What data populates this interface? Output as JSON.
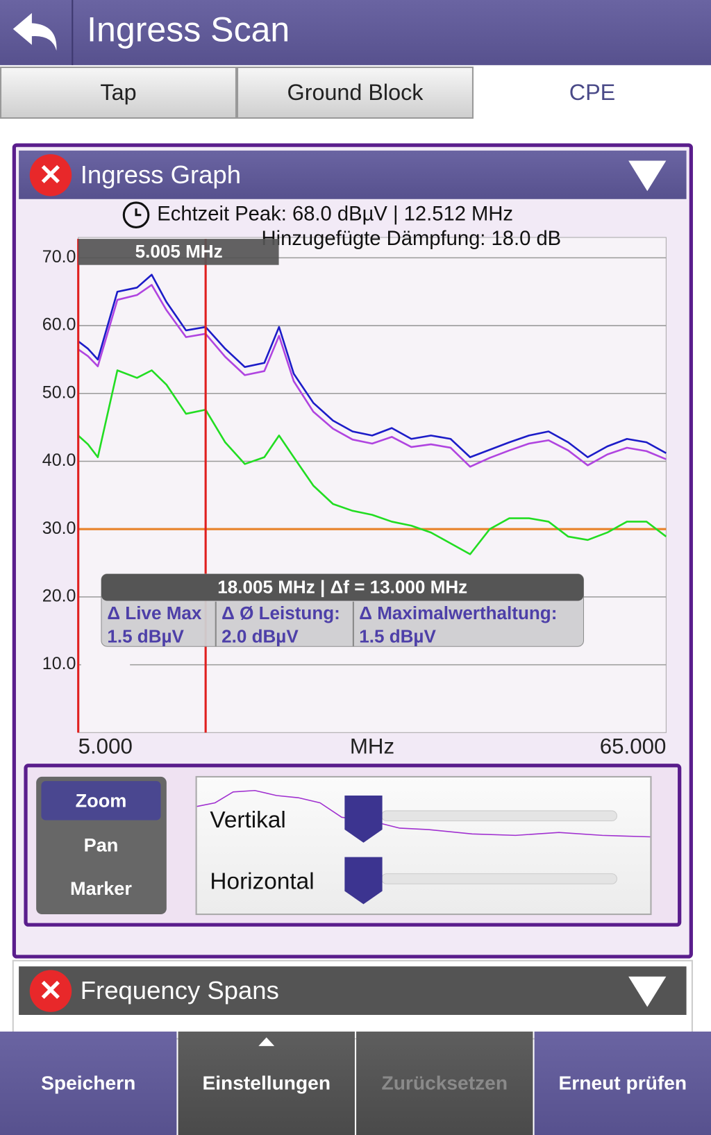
{
  "header": {
    "title": "Ingress Scan"
  },
  "tabs": [
    "Tap",
    "Ground Block",
    "CPE"
  ],
  "graph_panel": {
    "title": "Ingress Graph"
  },
  "chart_data": {
    "type": "line",
    "peak_text": "Echtzeit Peak: 68.0 dBµV | 12.512 MHz",
    "attenuation_text": "Hinzugefügte Dämpfung: 18.0 dB",
    "y_unit": "dBµV",
    "x_label": "MHz",
    "x": [
      5,
      6,
      7,
      9,
      11,
      12.5,
      14,
      16,
      18,
      20,
      22,
      24,
      25.5,
      27,
      29,
      31,
      33,
      35,
      37,
      39,
      41,
      43,
      45,
      47,
      49,
      51,
      53,
      55,
      57,
      59,
      61,
      63,
      65
    ],
    "series": [
      {
        "color": "#1c1cc8",
        "values": [
          57.7,
          56.6,
          55,
          65,
          65.6,
          67.5,
          63.5,
          59.3,
          59.8,
          56.6,
          53.9,
          54.5,
          59.8,
          52.9,
          48.6,
          46,
          44.4,
          43.8,
          44.9,
          43.3,
          43.8,
          43.3,
          40.6,
          41.7,
          42.8,
          43.8,
          44.4,
          42.8,
          40.6,
          42.2,
          43.3,
          42.8,
          41.2
        ]
      },
      {
        "color": "#b044e0",
        "values": [
          56.5,
          55.5,
          54,
          63.8,
          64.5,
          66,
          62.3,
          58.3,
          58.8,
          55.4,
          52.7,
          53.3,
          58.5,
          51.8,
          47.3,
          44.8,
          43.2,
          42.6,
          43.6,
          42.1,
          42.5,
          42,
          39.2,
          40.5,
          41.6,
          42.6,
          43.1,
          41.6,
          39.4,
          41,
          42,
          41.5,
          40.3
        ]
      },
      {
        "color": "#22dd22",
        "values": [
          43.8,
          42.5,
          40.6,
          53.4,
          52.3,
          53.4,
          51.3,
          47,
          47.6,
          42.8,
          39.6,
          40.6,
          43.8,
          40.6,
          36.4,
          33.7,
          32.7,
          32.1,
          31.1,
          30.5,
          29.5,
          27.9,
          26.3,
          30,
          31.6,
          31.6,
          31.1,
          28.9,
          28.4,
          29.5,
          31.1,
          31.1,
          28.9
        ]
      }
    ],
    "xlim": [
      5,
      65
    ],
    "ylim": [
      0,
      73
    ],
    "xticks": [
      {
        "value": 5,
        "label": "5.000"
      },
      {
        "value": 65,
        "label": "65.000"
      }
    ],
    "yticks": [
      {
        "value": 10,
        "label": "10.0"
      },
      {
        "value": 20,
        "label": "20.0"
      },
      {
        "value": 30,
        "label": "30.0"
      },
      {
        "value": 40,
        "label": "40.0"
      },
      {
        "value": 50,
        "label": "50.0"
      },
      {
        "value": 60,
        "label": "60.0"
      },
      {
        "value": 70,
        "label": "70.0"
      }
    ],
    "grid": true,
    "threshold": {
      "value": 30,
      "color": "#e8822a"
    },
    "markers": [
      {
        "value": 5.005,
        "label": "5.005 MHz"
      },
      {
        "value": 18.005
      }
    ],
    "delta_box": {
      "header": "18.005 MHz  |  Δf = 13.000 MHz",
      "columns": [
        {
          "label": "Δ Live Max",
          "value": "1.5 dBµV"
        },
        {
          "label": "Δ Ø Leistung:",
          "value": "2.0 dBµV"
        },
        {
          "label": "Δ Maximalwerthaltung:",
          "value": "1.5 dBµV"
        }
      ]
    }
  },
  "controls": {
    "modes": [
      "Zoom",
      "Pan",
      "Marker"
    ],
    "sliders": [
      "Vertikal",
      "Horizontal"
    ]
  },
  "spans_panel": {
    "title": "Frequency Spans"
  },
  "footer": {
    "buttons": [
      "Speichern",
      "Einstellungen",
      "Zurücksetzen",
      "Erneut prüfen"
    ]
  }
}
